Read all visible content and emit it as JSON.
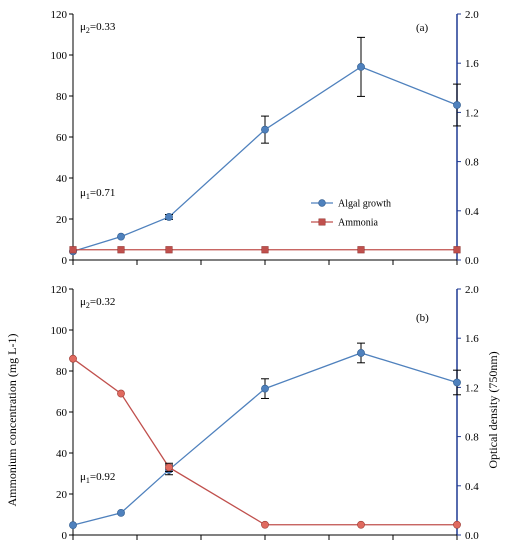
{
  "chart_data": [
    {
      "type": "line",
      "panel_label": "(a)",
      "x": [
        0,
        1,
        2,
        4,
        6,
        8
      ],
      "xlim": [
        0,
        8
      ],
      "ylim_left": [
        0,
        120
      ],
      "ylim_right": [
        0,
        2.0
      ],
      "yticks_left": [
        "0",
        "20",
        "40",
        "60",
        "80",
        "100",
        "120"
      ],
      "yticks_right": [
        "0.0",
        "0.4",
        "0.8",
        "1.2",
        "1.6",
        "2.0"
      ],
      "annotations": {
        "mu2": "μ2=0.33",
        "mu1": "μ1=0.71"
      },
      "grid": false,
      "legend_position": "center-right",
      "series": [
        {
          "name": "Algal growth",
          "axis": "right",
          "color": "#4f81bd",
          "values": [
            0.07,
            0.19,
            0.35,
            1.06,
            1.57,
            1.26
          ],
          "errors": [
            0.0,
            0.0,
            0.02,
            0.11,
            0.24,
            0.17
          ]
        },
        {
          "name": "Ammonia",
          "axis": "left",
          "color": "#c0504d",
          "values": [
            5,
            5,
            5,
            5,
            5,
            5
          ],
          "errors": [
            0,
            0,
            0,
            0,
            0,
            0
          ]
        }
      ]
    },
    {
      "type": "line",
      "panel_label": "(b)",
      "x": [
        0,
        1,
        2,
        4,
        6,
        8
      ],
      "xlim": [
        0,
        8
      ],
      "ylim_left": [
        0,
        120
      ],
      "ylim_right": [
        0,
        2.0
      ],
      "yticks_left": [
        "0",
        "20",
        "40",
        "60",
        "80",
        "100",
        "120"
      ],
      "yticks_right": [
        "0.0",
        "0.4",
        "0.8",
        "1.2",
        "1.6",
        "2.0"
      ],
      "annotations": {
        "mu2": "μ2=0.32",
        "mu1": "μ1=0.92"
      },
      "grid": false,
      "ylabel_left": "Ammonium concentration (mg L-1)",
      "ylabel_right": "Optical density (750nm)",
      "series": [
        {
          "name": "Algal growth",
          "axis": "right",
          "color": "#4f81bd",
          "values": [
            0.08,
            0.18,
            0.53,
            1.19,
            1.48,
            1.24
          ],
          "errors": [
            0.0,
            0.0,
            0.04,
            0.08,
            0.08,
            0.1
          ]
        },
        {
          "name": "Ammonia",
          "axis": "left",
          "color": "#c0504d",
          "values": [
            86,
            69,
            33,
            5,
            5,
            5
          ],
          "errors": [
            0,
            0,
            2,
            0,
            0,
            0
          ]
        }
      ]
    }
  ]
}
